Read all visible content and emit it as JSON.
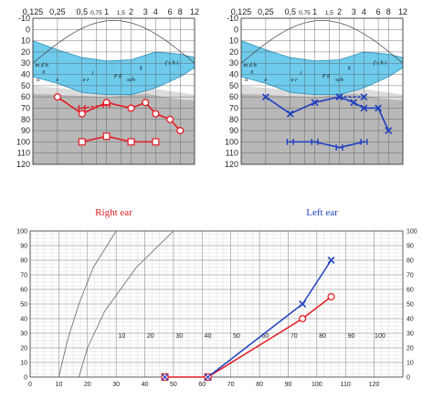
{
  "chart_data": [
    {
      "type": "line",
      "id": "right-audiogram",
      "title": "Right ear",
      "title_color": "#e31b23",
      "x_ticks": [
        "0,125",
        "0,25",
        "0,5",
        "0,75",
        "1",
        "1,5",
        "2",
        "3",
        "4",
        "6",
        "8",
        "12"
      ],
      "x_freq": [
        125,
        250,
        500,
        750,
        1000,
        1500,
        2000,
        3000,
        4000,
        6000,
        8000,
        12000
      ],
      "y_ticks": [
        -10,
        0,
        10,
        20,
        30,
        40,
        50,
        60,
        70,
        80,
        90,
        100,
        110,
        120
      ],
      "ylim": [
        -10,
        120
      ],
      "y_inverted": true,
      "grid": true,
      "speech_banana_color": "#6ecbec",
      "hearing_loss_shading": "#b8b8b8",
      "phoneme_labels": [
        {
          "text": "m d b",
          "freq": 160,
          "db": 33
        },
        {
          "text": "n",
          "freq": 170,
          "db": 39
        },
        {
          "text": "u",
          "freq": 145,
          "db": 46
        },
        {
          "text": "e",
          "freq": 250,
          "db": 46
        },
        {
          "text": "i",
          "freq": 680,
          "db": 40
        },
        {
          "text": "e r",
          "freq": 560,
          "db": 46
        },
        {
          "text": "p g",
          "freq": 1380,
          "db": 42
        },
        {
          "text": "k",
          "freq": 2650,
          "db": 36
        },
        {
          "text": "sch",
          "freq": 2000,
          "db": 46
        },
        {
          "text": "f s h t",
          "freq": 6300,
          "db": 31
        }
      ],
      "series": [
        {
          "name": "air-conduction",
          "marker": "circle",
          "color": "#e31b23",
          "x": [
            250,
            500,
            1000,
            2000,
            3000,
            4000,
            6000,
            8000
          ],
          "y": [
            60,
            75,
            65,
            70,
            65,
            75,
            80,
            90
          ]
        },
        {
          "name": "air-conduction-masked",
          "marker": "bracket",
          "color": "#e31b23",
          "dashed": true,
          "x": [
            500,
            1000
          ],
          "y": [
            70,
            67
          ]
        },
        {
          "name": "bone-conduction",
          "marker": "square",
          "color": "#e31b23",
          "x": [
            500,
            1000,
            2000,
            4000
          ],
          "y": [
            100,
            95,
            100,
            100
          ]
        }
      ]
    },
    {
      "type": "line",
      "id": "left-audiogram",
      "title": "Left ear",
      "title_color": "#1f3fbf",
      "x_ticks": [
        "0,125",
        "0,25",
        "0,5",
        "0,75",
        "1",
        "1,5",
        "2",
        "3",
        "4",
        "6",
        "8",
        "12"
      ],
      "x_freq": [
        125,
        250,
        500,
        750,
        1000,
        1500,
        2000,
        3000,
        4000,
        6000,
        8000,
        12000
      ],
      "y_ticks": [
        -10,
        0,
        10,
        20,
        30,
        40,
        50,
        60,
        70,
        80,
        90,
        100,
        110,
        120
      ],
      "ylim": [
        -10,
        120
      ],
      "y_inverted": true,
      "grid": true,
      "speech_banana_color": "#6ecbec",
      "hearing_loss_shading": "#b8b8b8",
      "phoneme_labels": [
        {
          "text": "m d b",
          "freq": 160,
          "db": 33
        },
        {
          "text": "n",
          "freq": 170,
          "db": 39
        },
        {
          "text": "u",
          "freq": 145,
          "db": 46
        },
        {
          "text": "e",
          "freq": 250,
          "db": 46
        },
        {
          "text": "i",
          "freq": 680,
          "db": 40
        },
        {
          "text": "e r",
          "freq": 560,
          "db": 46
        },
        {
          "text": "p g",
          "freq": 1380,
          "db": 42
        },
        {
          "text": "k",
          "freq": 2650,
          "db": 36
        },
        {
          "text": "sch",
          "freq": 2000,
          "db": 46
        },
        {
          "text": "f s h t",
          "freq": 6300,
          "db": 31
        }
      ],
      "series": [
        {
          "name": "air-conduction",
          "marker": "x",
          "color": "#1f3fbf",
          "x": [
            250,
            500,
            1000,
            2000,
            3000,
            4000,
            6000,
            8000
          ],
          "y": [
            60,
            75,
            65,
            60,
            65,
            70,
            70,
            90
          ]
        },
        {
          "name": "air-conduction-masked",
          "marker": "x",
          "color": "#1f3fbf",
          "dashed": true,
          "x": [
            2000,
            4000
          ],
          "y": [
            60,
            60
          ]
        },
        {
          "name": "bone-conduction",
          "marker": "bracket",
          "color": "#1f3fbf",
          "x": [
            500,
            1000,
            2000,
            4000
          ],
          "y": [
            100,
            100,
            105,
            100
          ]
        }
      ]
    },
    {
      "type": "line",
      "id": "lower-chart",
      "xlim": [
        0,
        130
      ],
      "ylim": [
        0,
        100
      ],
      "x_ticks": [
        0,
        10,
        20,
        30,
        40,
        50,
        60,
        70,
        80,
        90,
        100,
        110,
        120
      ],
      "y_ticks": [
        0,
        10,
        20,
        30,
        40,
        50,
        60,
        70,
        80,
        90,
        100
      ],
      "grid": true,
      "reference_curves": [
        {
          "name": "ref-1",
          "x": [
            10,
            13,
            17,
            22,
            30
          ],
          "y": [
            0,
            25,
            50,
            75,
            100
          ]
        },
        {
          "name": "ref-2",
          "x": [
            17,
            20,
            26,
            37,
            50
          ],
          "y": [
            0,
            20,
            45,
            75,
            100
          ]
        }
      ],
      "inner_axis_ticks": [
        10,
        20,
        30,
        40,
        50,
        60,
        70,
        80,
        90,
        100
      ],
      "series": [
        {
          "name": "red-series",
          "marker": "circle",
          "color": "#e31b23",
          "x": [
            62,
            95,
            105
          ],
          "y": [
            0,
            40,
            55
          ]
        },
        {
          "name": "blue-series",
          "marker": "x",
          "color": "#1f3fbf",
          "x": [
            62,
            95,
            105
          ],
          "y": [
            0,
            50,
            80
          ]
        },
        {
          "name": "floor-series",
          "marker": "square-x",
          "color": "#e31b23",
          "x": [
            47,
            62
          ],
          "y": [
            0,
            0
          ]
        }
      ]
    }
  ]
}
